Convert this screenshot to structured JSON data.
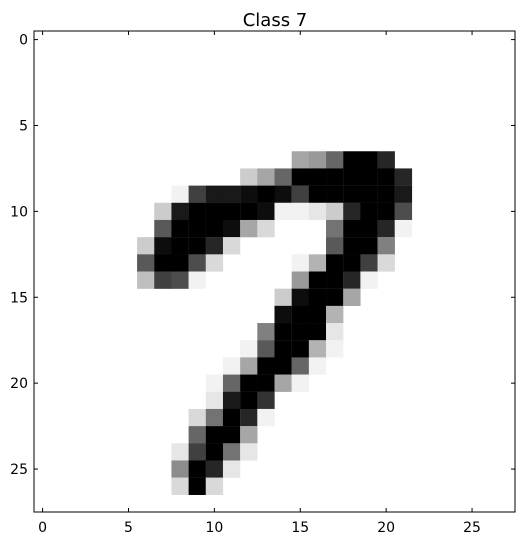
{
  "chart_data": {
    "type": "heatmap",
    "title": "Class 7",
    "colormap": "gray_r",
    "value_range": [
      0,
      1
    ],
    "grid": false,
    "xlim": [
      -0.5,
      27.5
    ],
    "ylim": [
      27.5,
      -0.5
    ],
    "xticks": [
      0,
      5,
      10,
      15,
      20,
      25
    ],
    "yticks": [
      0,
      5,
      10,
      15,
      20,
      25
    ],
    "xtick_labels": [
      "0",
      "5",
      "10",
      "15",
      "20",
      "25"
    ],
    "ytick_labels": [
      "0",
      "5",
      "10",
      "15",
      "20",
      "25"
    ],
    "rows": 28,
    "cols": 28,
    "pixels": [
      [
        7,
        15,
        0.35
      ],
      [
        7,
        16,
        0.4
      ],
      [
        7,
        17,
        0.6
      ],
      [
        7,
        18,
        1.0
      ],
      [
        7,
        19,
        1.0
      ],
      [
        7,
        20,
        0.85
      ],
      [
        8,
        12,
        0.2
      ],
      [
        8,
        13,
        0.35
      ],
      [
        8,
        14,
        0.6
      ],
      [
        8,
        15,
        1.0
      ],
      [
        8,
        16,
        1.0
      ],
      [
        8,
        17,
        1.0
      ],
      [
        8,
        18,
        1.0
      ],
      [
        8,
        19,
        1.0
      ],
      [
        8,
        20,
        1.0
      ],
      [
        8,
        21,
        0.85
      ],
      [
        9,
        8,
        0.05
      ],
      [
        9,
        9,
        0.75
      ],
      [
        9,
        10,
        0.9
      ],
      [
        9,
        11,
        0.9
      ],
      [
        9,
        12,
        0.95
      ],
      [
        9,
        13,
        1.0
      ],
      [
        9,
        14,
        0.95
      ],
      [
        9,
        15,
        0.75
      ],
      [
        9,
        16,
        1.0
      ],
      [
        9,
        17,
        1.0
      ],
      [
        9,
        18,
        1.0
      ],
      [
        9,
        19,
        1.0
      ],
      [
        9,
        20,
        1.0
      ],
      [
        9,
        21,
        0.9
      ],
      [
        10,
        7,
        0.2
      ],
      [
        10,
        8,
        0.9
      ],
      [
        10,
        9,
        1.0
      ],
      [
        10,
        10,
        1.0
      ],
      [
        10,
        11,
        1.0
      ],
      [
        10,
        12,
        1.0
      ],
      [
        10,
        13,
        0.95
      ],
      [
        10,
        14,
        0.05
      ],
      [
        10,
        15,
        0.05
      ],
      [
        10,
        16,
        0.1
      ],
      [
        10,
        17,
        0.2
      ],
      [
        10,
        18,
        0.85
      ],
      [
        10,
        19,
        1.0
      ],
      [
        10,
        20,
        1.0
      ],
      [
        10,
        21,
        0.7
      ],
      [
        11,
        7,
        0.65
      ],
      [
        11,
        8,
        1.0
      ],
      [
        11,
        9,
        1.0
      ],
      [
        11,
        10,
        1.0
      ],
      [
        11,
        11,
        0.95
      ],
      [
        11,
        12,
        0.35
      ],
      [
        11,
        13,
        0.15
      ],
      [
        11,
        17,
        0.55
      ],
      [
        11,
        18,
        1.0
      ],
      [
        11,
        19,
        1.0
      ],
      [
        11,
        20,
        0.85
      ],
      [
        11,
        21,
        0.05
      ],
      [
        12,
        6,
        0.2
      ],
      [
        12,
        7,
        0.95
      ],
      [
        12,
        8,
        1.0
      ],
      [
        12,
        9,
        1.0
      ],
      [
        12,
        10,
        0.85
      ],
      [
        12,
        11,
        0.15
      ],
      [
        12,
        17,
        0.65
      ],
      [
        12,
        18,
        1.0
      ],
      [
        12,
        19,
        1.0
      ],
      [
        12,
        20,
        0.5
      ],
      [
        13,
        6,
        0.65
      ],
      [
        13,
        7,
        1.0
      ],
      [
        13,
        8,
        1.0
      ],
      [
        13,
        9,
        0.7
      ],
      [
        13,
        10,
        0.15
      ],
      [
        13,
        15,
        0.05
      ],
      [
        13,
        16,
        0.3
      ],
      [
        13,
        17,
        1.0
      ],
      [
        13,
        18,
        1.0
      ],
      [
        13,
        19,
        0.75
      ],
      [
        13,
        20,
        0.15
      ],
      [
        14,
        6,
        0.25
      ],
      [
        14,
        7,
        0.75
      ],
      [
        14,
        8,
        0.7
      ],
      [
        14,
        9,
        0.05
      ],
      [
        14,
        15,
        0.4
      ],
      [
        14,
        16,
        1.0
      ],
      [
        14,
        17,
        1.0
      ],
      [
        14,
        18,
        0.85
      ],
      [
        14,
        19,
        0.05
      ],
      [
        15,
        14,
        0.2
      ],
      [
        15,
        15,
        0.95
      ],
      [
        15,
        16,
        1.0
      ],
      [
        15,
        17,
        1.0
      ],
      [
        15,
        18,
        0.35
      ],
      [
        16,
        14,
        0.95
      ],
      [
        16,
        15,
        1.0
      ],
      [
        16,
        16,
        1.0
      ],
      [
        16,
        17,
        0.3
      ],
      [
        17,
        13,
        0.5
      ],
      [
        17,
        14,
        1.0
      ],
      [
        17,
        15,
        1.0
      ],
      [
        17,
        16,
        1.0
      ],
      [
        17,
        17,
        0.1
      ],
      [
        18,
        12,
        0.05
      ],
      [
        18,
        13,
        0.65
      ],
      [
        18,
        14,
        1.0
      ],
      [
        18,
        15,
        1.0
      ],
      [
        18,
        16,
        0.3
      ],
      [
        18,
        17,
        0.05
      ],
      [
        19,
        11,
        0.05
      ],
      [
        19,
        12,
        0.35
      ],
      [
        19,
        13,
        1.0
      ],
      [
        19,
        14,
        1.0
      ],
      [
        19,
        15,
        0.6
      ],
      [
        19,
        16,
        0.05
      ],
      [
        20,
        10,
        0.05
      ],
      [
        20,
        11,
        0.6
      ],
      [
        20,
        12,
        1.0
      ],
      [
        20,
        13,
        1.0
      ],
      [
        20,
        14,
        0.35
      ],
      [
        20,
        15,
        0.05
      ],
      [
        21,
        10,
        0.1
      ],
      [
        21,
        11,
        0.9
      ],
      [
        21,
        12,
        1.0
      ],
      [
        21,
        13,
        0.8
      ],
      [
        22,
        9,
        0.15
      ],
      [
        22,
        10,
        0.55
      ],
      [
        22,
        11,
        1.0
      ],
      [
        22,
        12,
        0.85
      ],
      [
        22,
        13,
        0.05
      ],
      [
        23,
        9,
        0.6
      ],
      [
        23,
        10,
        1.0
      ],
      [
        23,
        11,
        1.0
      ],
      [
        23,
        12,
        0.35
      ],
      [
        24,
        8,
        0.1
      ],
      [
        24,
        9,
        0.75
      ],
      [
        24,
        10,
        1.0
      ],
      [
        24,
        11,
        0.55
      ],
      [
        24,
        12,
        0.1
      ],
      [
        25,
        8,
        0.45
      ],
      [
        25,
        9,
        1.0
      ],
      [
        25,
        10,
        0.85
      ],
      [
        25,
        11,
        0.1
      ],
      [
        26,
        8,
        0.15
      ],
      [
        26,
        9,
        1.0
      ],
      [
        26,
        10,
        0.15
      ]
    ]
  }
}
